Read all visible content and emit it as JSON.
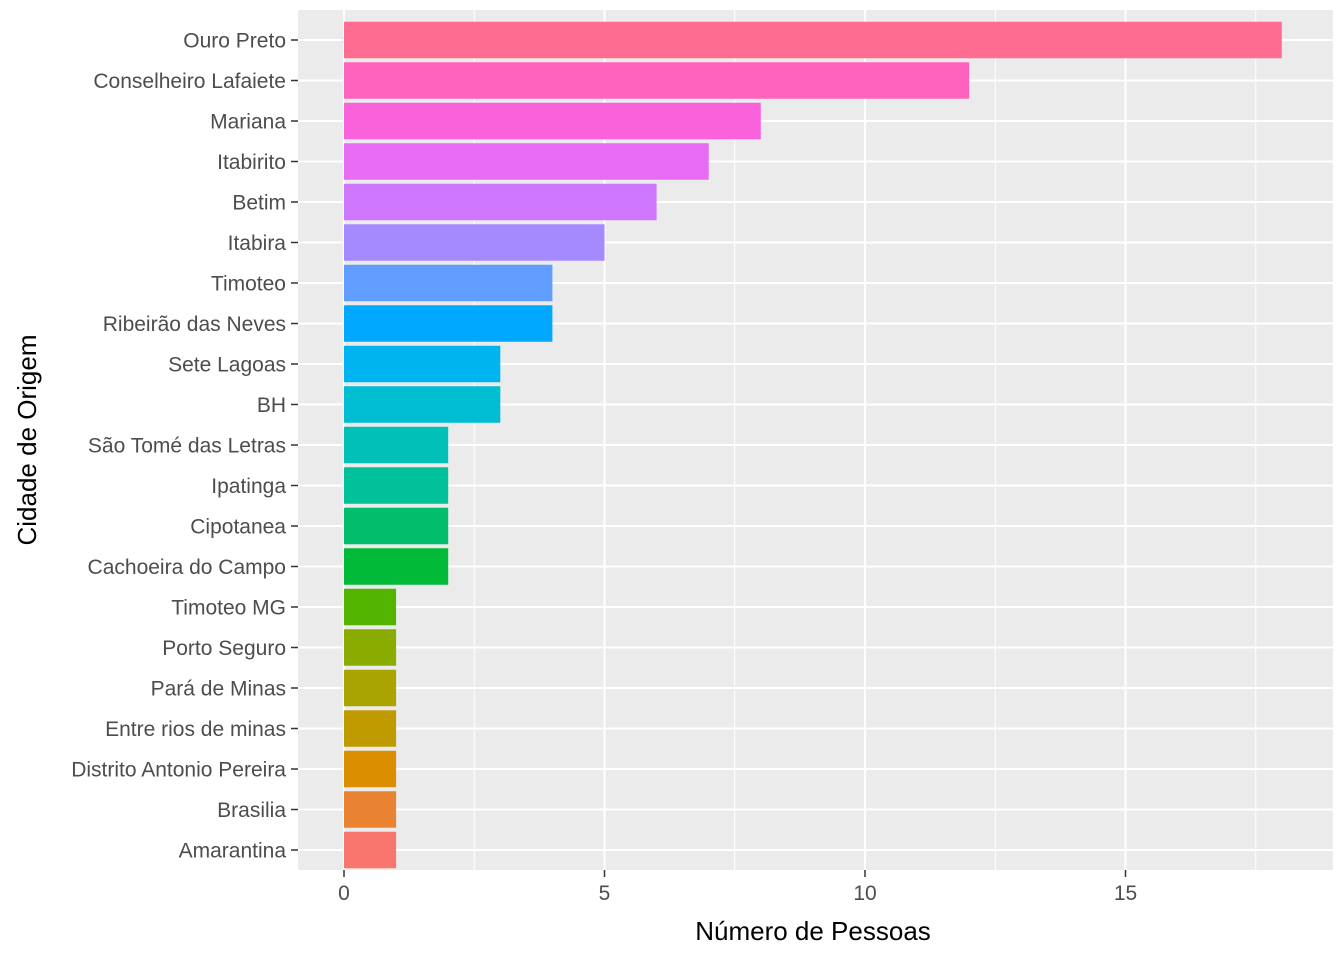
{
  "chart_data": {
    "type": "bar",
    "orientation": "horizontal",
    "title": "",
    "xlabel": "Número de Pessoas",
    "ylabel": "Cidade de Origem",
    "xlim": [
      0,
      18.9
    ],
    "x_ticks": [
      0,
      5,
      10,
      15
    ],
    "grid": true,
    "legend": "none",
    "categories": [
      "Ouro Preto",
      "Conselheiro Lafaiete",
      "Mariana",
      "Itabirito",
      "Betim",
      "Itabira",
      "Timoteo",
      "Ribeirão das Neves",
      "Sete Lagoas",
      "BH",
      "São Tomé das Letras",
      "Ipatinga",
      "Cipotanea",
      "Cachoeira do Campo",
      "Timoteo MG",
      "Porto Seguro",
      "Pará de Minas",
      "Entre rios de minas",
      "Distrito Antonio Pereira",
      "Brasilia",
      "Amarantina"
    ],
    "values": [
      18,
      12,
      8,
      7,
      6,
      5,
      4,
      4,
      3,
      3,
      2,
      2,
      2,
      2,
      1,
      1,
      1,
      1,
      1,
      1,
      1
    ],
    "colors": [
      "#FF6C91",
      "#FF62BC",
      "#FA62DB",
      "#E76BF3",
      "#CF78FF",
      "#A58AFF",
      "#619CFF",
      "#00A9FF",
      "#00B4EF",
      "#00BDD2",
      "#00C0B8",
      "#00C19A",
      "#00BE6C",
      "#00BA38",
      "#53B400",
      "#8AAB00",
      "#A9A400",
      "#C09B00",
      "#DB8E00",
      "#EA8331",
      "#F8766D"
    ],
    "panel_background": "#EBEBEB",
    "grid_color": "#FFFFFF"
  }
}
